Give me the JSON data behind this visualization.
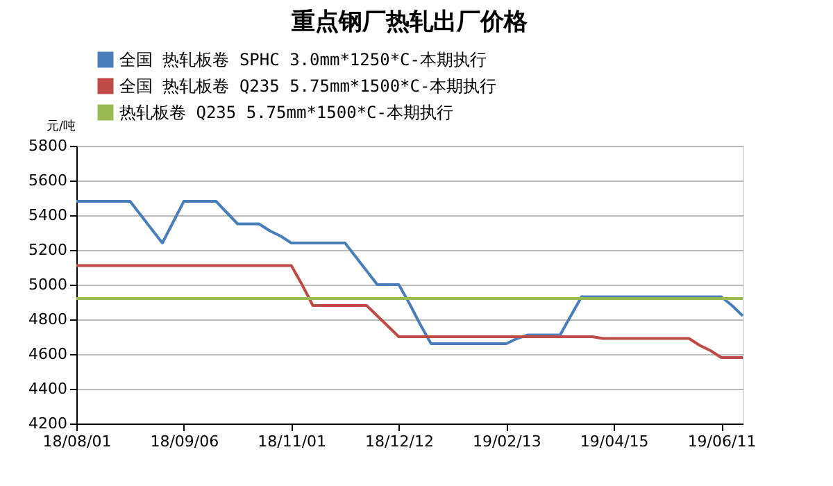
{
  "chart_data": {
    "type": "line",
    "title": "重点钢厂热轧出厂价格",
    "ylabel": "元/吨",
    "categories": [
      "18/08/01",
      null,
      null,
      null,
      null,
      null,
      null,
      null,
      null,
      null,
      "18/09/06",
      null,
      null,
      null,
      null,
      null,
      null,
      null,
      null,
      null,
      "18/11/01",
      null,
      null,
      null,
      null,
      null,
      null,
      null,
      null,
      null,
      "18/12/12",
      null,
      null,
      null,
      null,
      null,
      null,
      null,
      null,
      null,
      "19/02/13",
      null,
      null,
      null,
      null,
      null,
      null,
      null,
      null,
      null,
      "19/04/15",
      null,
      null,
      null,
      null,
      null,
      null,
      null,
      null,
      null,
      "19/06/11",
      null,
      null
    ],
    "ylim": [
      4200,
      5800
    ],
    "yticks": [
      4200,
      4400,
      4600,
      4800,
      5000,
      5200,
      5400,
      5600,
      5800
    ],
    "grid": "y",
    "legend": "top left",
    "marker": "none",
    "line_style": "solid",
    "series": [
      {
        "name": "全国 热轧板卷 SPHC 3.0mm*1250*C-本期执行",
        "color": "#4a7ebb",
        "values": [
          5480,
          5480,
          5480,
          5480,
          5480,
          5480,
          5400,
          5320,
          5240,
          5360,
          5480,
          5480,
          5480,
          5480,
          5415,
          5350,
          5350,
          5350,
          5310,
          5280,
          5240,
          5240,
          5240,
          5240,
          5240,
          5240,
          5160,
          5080,
          5000,
          5000,
          5000,
          4890,
          4770,
          4660,
          4660,
          4660,
          4660,
          4660,
          4660,
          4660,
          4660,
          4690,
          4710,
          4710,
          4710,
          4710,
          4820,
          4930,
          4930,
          4930,
          4930,
          4930,
          4930,
          4930,
          4930,
          4930,
          4930,
          4930,
          4930,
          4930,
          4930,
          4880,
          4820
        ]
      },
      {
        "name": "全国 热轧板卷 Q235 5.75mm*1500*C-本期执行",
        "color": "#be4b48",
        "values": [
          5110,
          5110,
          5110,
          5110,
          5110,
          5110,
          5110,
          5110,
          5110,
          5110,
          5110,
          5110,
          5110,
          5110,
          5110,
          5110,
          5110,
          5110,
          5110,
          5110,
          5110,
          5000,
          4880,
          4880,
          4880,
          4880,
          4880,
          4880,
          4820,
          4760,
          4700,
          4700,
          4700,
          4700,
          4700,
          4700,
          4700,
          4700,
          4700,
          4700,
          4700,
          4700,
          4700,
          4700,
          4700,
          4700,
          4700,
          4700,
          4700,
          4690,
          4690,
          4690,
          4690,
          4690,
          4690,
          4690,
          4690,
          4690,
          4650,
          4620,
          4580,
          4580,
          4580
        ]
      },
      {
        "name": "热轧板卷 Q235 5.75mm*1500*C-本期执行",
        "color": "#98b954",
        "values": [
          4920,
          4920,
          4920,
          4920,
          4920,
          4920,
          4920,
          4920,
          4920,
          4920,
          4920,
          4920,
          4920,
          4920,
          4920,
          4920,
          4920,
          4920,
          4920,
          4920,
          4920,
          4920,
          4920,
          4920,
          4920,
          4920,
          4920,
          4920,
          4920,
          4920,
          4920,
          4920,
          4920,
          4920,
          4920,
          4920,
          4920,
          4920,
          4920,
          4920,
          4920,
          4920,
          4920,
          4920,
          4920,
          4920,
          4920,
          4920,
          4920,
          4920,
          4920,
          4920,
          4920,
          4920,
          4920,
          4920,
          4920,
          4920,
          4920,
          4920,
          4920,
          4920,
          4920
        ]
      }
    ]
  }
}
